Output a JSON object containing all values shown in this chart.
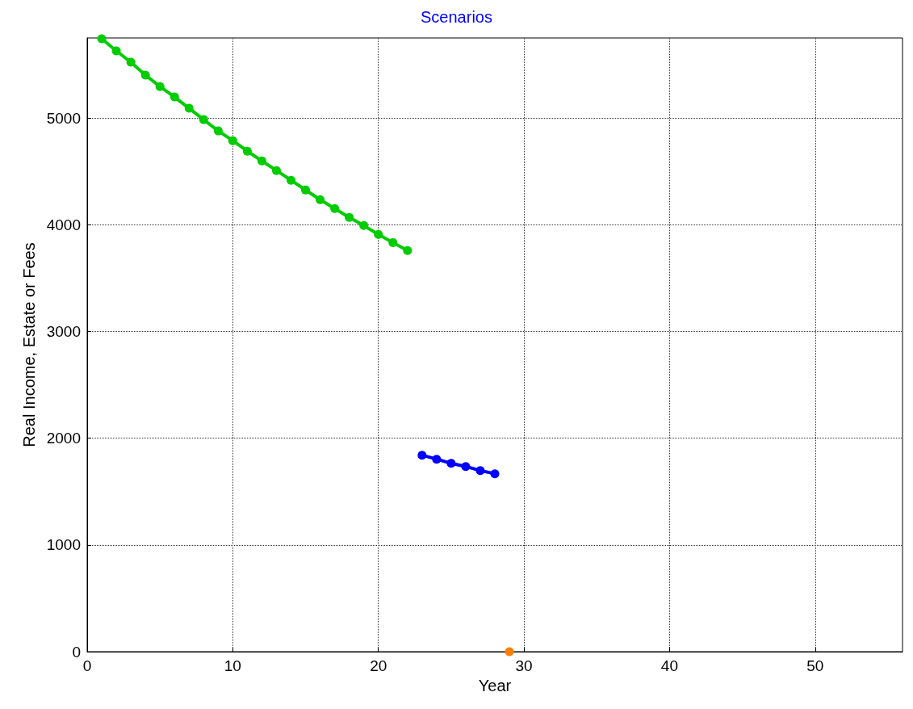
{
  "chart_data": {
    "type": "line",
    "title": "Scenarios",
    "xlabel": "Year",
    "ylabel": "Real Income, Estate or Fees",
    "xlim": [
      0,
      56
    ],
    "xticks": [
      0,
      10,
      20,
      30,
      40,
      50
    ],
    "ylim": [
      0,
      5750
    ],
    "yticks": [
      0,
      1000,
      2000,
      3000,
      4000,
      5000
    ],
    "grid": true,
    "marker": "circle",
    "line_style": "solid",
    "series": [
      {
        "color": "#00cc00",
        "x": [
          1,
          2,
          3,
          4,
          5,
          6,
          7,
          8,
          9,
          10,
          11,
          12,
          13,
          14,
          15,
          16,
          17,
          18,
          19,
          20,
          21,
          22
        ],
        "values": [
          5742,
          5629,
          5523,
          5402,
          5295,
          5197,
          5091,
          4985,
          4879,
          4788,
          4689,
          4598,
          4508,
          4417,
          4326,
          4235,
          4152,
          4068,
          3992,
          3909,
          3833,
          3758
        ]
      },
      {
        "color": "#0000ff",
        "x": [
          23,
          24,
          25,
          26,
          27,
          28
        ],
        "values": [
          1841,
          1803,
          1765,
          1735,
          1697,
          1667
        ]
      },
      {
        "color": "#ff8000",
        "x": [
          29
        ],
        "values": [
          0
        ]
      }
    ]
  }
}
